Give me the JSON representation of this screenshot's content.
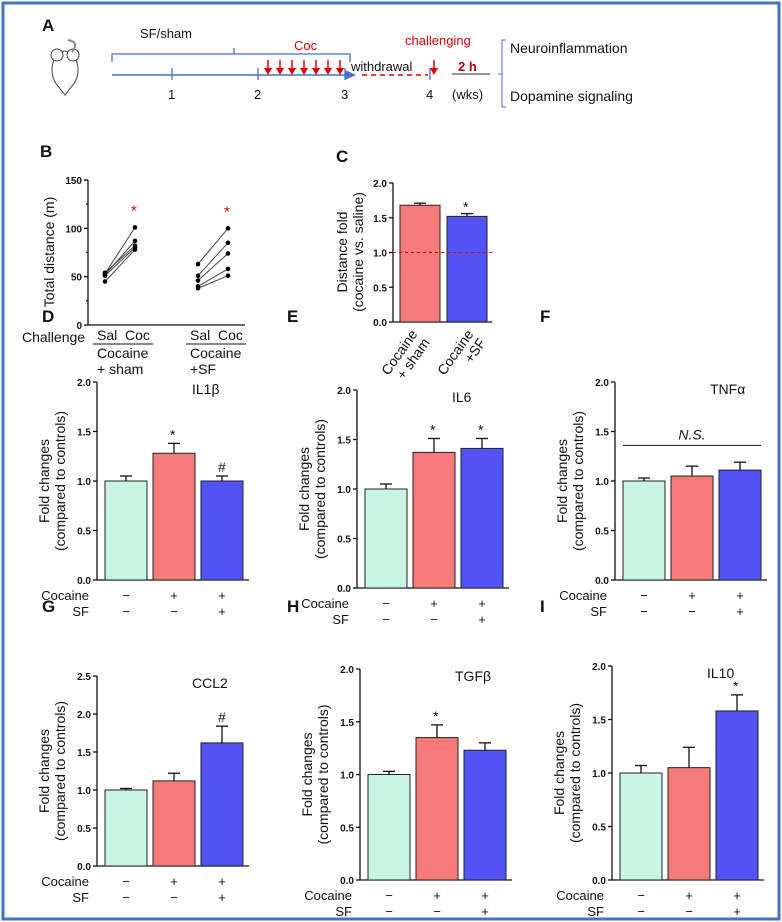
{
  "colors": {
    "frame": "#4472c4",
    "control": "#c9f5e4",
    "cocaine": "#f57a7a",
    "sf": "#5252f5",
    "red": "#e00000",
    "timeline": "#4472c4"
  },
  "panel_a": {
    "label": "A",
    "sf_sham": "SF/sham",
    "coc": "Coc",
    "challenging": "challenging",
    "withdrawal": "withdrawal",
    "duration": "2 h",
    "weeks": [
      "1",
      "2",
      "3",
      "4"
    ],
    "weeks_unit": "(wks)",
    "outcomes": [
      "Neuroinflammation",
      "Dopamine signaling"
    ],
    "injection_count": 7
  },
  "chart_data": [
    {
      "panel": "B",
      "type": "line",
      "ylabel": "Total distance (m)",
      "ylim": [
        0,
        150
      ],
      "yticks": [
        0,
        50,
        100,
        150
      ],
      "row_label": "Challenge",
      "x_labels": [
        "Sal",
        "Coc"
      ],
      "groups": [
        {
          "name": "Cocaine + sham",
          "name_lines": [
            "Cocaine",
            "+ sham"
          ],
          "sal": [
            53,
            52,
            54,
            51,
            45
          ],
          "coc": [
            101,
            87,
            82,
            80,
            78
          ],
          "sig": "*"
        },
        {
          "name": "Cocaine +SF",
          "name_lines": [
            "Cocaine",
            "+SF"
          ],
          "sal": [
            63,
            51,
            46,
            40,
            38
          ],
          "coc": [
            100,
            85,
            74,
            58,
            51
          ],
          "sig": "*"
        }
      ]
    },
    {
      "panel": "C",
      "type": "bar",
      "ylabel": [
        "Distance fold",
        "(cocaine vs. saline)"
      ],
      "ylim": [
        0,
        2
      ],
      "yticks": [
        "0.0",
        "0.5",
        "1.0",
        "1.5",
        "2.0"
      ],
      "categories": [
        "Cocaine + sham",
        "Cocaine +SF"
      ],
      "category_lines": [
        [
          "Cocaine",
          "+ sham"
        ],
        [
          "Cocaine",
          "+SF"
        ]
      ],
      "values": [
        1.68,
        1.52
      ],
      "errors": [
        0.03,
        0.04
      ],
      "sig": [
        "",
        "*"
      ],
      "reference_line": 1.0
    },
    {
      "panel": "D",
      "type": "bar",
      "title": "IL1β",
      "ylim": [
        0,
        2
      ],
      "yticks": [
        "0.0",
        "0.5",
        "1.0",
        "1.5",
        "2.0"
      ],
      "values": [
        1.0,
        1.28,
        1.0
      ],
      "errors": [
        0.05,
        0.1,
        0.05
      ],
      "sig": [
        "",
        "*",
        "#"
      ]
    },
    {
      "panel": "E",
      "type": "bar",
      "title": "IL6",
      "ylim": [
        0,
        2
      ],
      "yticks": [
        "0.0",
        "0.5",
        "1.0",
        "1.5",
        "2.0"
      ],
      "values": [
        1.0,
        1.37,
        1.41
      ],
      "errors": [
        0.05,
        0.14,
        0.1
      ],
      "sig": [
        "",
        "*",
        "*"
      ]
    },
    {
      "panel": "F",
      "type": "bar",
      "title": "TNFα",
      "ylim": [
        0,
        2
      ],
      "yticks": [
        "0.0",
        "0.5",
        "1.0",
        "1.5",
        "2.0"
      ],
      "values": [
        1.0,
        1.05,
        1.11
      ],
      "errors": [
        0.03,
        0.1,
        0.08
      ],
      "sig": [
        "",
        "",
        ""
      ],
      "annotation": "N.S."
    },
    {
      "panel": "G",
      "type": "bar",
      "title": "CCL2",
      "ylim": [
        0,
        2.5
      ],
      "yticks": [
        "0.0",
        "0.5",
        "1.0",
        "1.5",
        "2.0",
        "2.5"
      ],
      "values": [
        1.0,
        1.12,
        1.62
      ],
      "errors": [
        0.02,
        0.1,
        0.22
      ],
      "sig": [
        "",
        "",
        "#"
      ]
    },
    {
      "panel": "H",
      "type": "bar",
      "title": "TGFβ",
      "ylim": [
        0,
        2
      ],
      "yticks": [
        "0.0",
        "0.5",
        "1.0",
        "1.5",
        "2.0"
      ],
      "values": [
        1.0,
        1.35,
        1.23
      ],
      "errors": [
        0.03,
        0.12,
        0.07
      ],
      "sig": [
        "",
        "*",
        ""
      ]
    },
    {
      "panel": "I",
      "type": "bar",
      "title": "IL10",
      "ylim": [
        0,
        2
      ],
      "yticks": [
        "0.0",
        "0.5",
        "1.0",
        "1.5",
        "2.0"
      ],
      "values": [
        1.0,
        1.05,
        1.58
      ],
      "errors": [
        0.07,
        0.19,
        0.15
      ],
      "sig": [
        "",
        "",
        "*"
      ]
    }
  ],
  "bar_common": {
    "ylabel": [
      "Fold changes",
      "(compared to controls)"
    ],
    "rows": [
      {
        "label": "Cocaine",
        "marks": [
          "−",
          "+",
          "+"
        ]
      },
      {
        "label": "SF",
        "marks": [
          "−",
          "−",
          "+"
        ]
      }
    ]
  }
}
